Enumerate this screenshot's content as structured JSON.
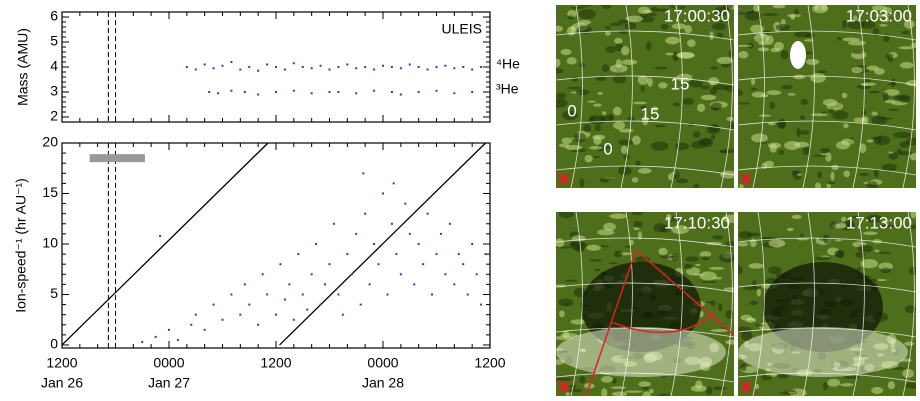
{
  "chart_data": [
    {
      "type": "scatter",
      "ylabel": "Mass (AMU)",
      "annotation": "ULEIS",
      "xlim": [
        0,
        48
      ],
      "xticks": [
        0,
        12,
        24,
        36,
        48
      ],
      "ylim": [
        1.8,
        6.2
      ],
      "yticks": [
        2,
        3,
        4,
        5,
        6
      ],
      "dashed_x": [
        5.2,
        6.0
      ],
      "series": [
        {
          "name": "⁴He",
          "color": "#4a2bd0",
          "x": [
            14,
            15,
            16,
            17,
            18,
            19,
            20,
            21,
            22,
            23,
            24,
            25,
            26,
            27,
            28,
            29,
            30,
            31,
            32,
            33,
            34,
            35,
            36,
            37,
            38,
            39,
            40,
            41,
            42,
            43,
            44,
            45,
            46,
            47
          ],
          "values": [
            4.0,
            3.9,
            4.1,
            3.95,
            4.05,
            4.2,
            3.9,
            4.0,
            3.85,
            4.1,
            4.0,
            3.9,
            4.15,
            4.0,
            3.95,
            4.05,
            3.9,
            4.0,
            4.1,
            3.95,
            4.0,
            3.9,
            4.05,
            4.0,
            3.95,
            4.1,
            4.0,
            3.9,
            4.0,
            4.05,
            3.95,
            4.0,
            3.9,
            4.0
          ]
        },
        {
          "name": "³He",
          "color": "#4a2bd0",
          "x": [
            16.5,
            17.5,
            19,
            20.5,
            22,
            24,
            26,
            28,
            30,
            31,
            33,
            35,
            37,
            38,
            40,
            42,
            44,
            46
          ],
          "values": [
            3.0,
            2.95,
            3.05,
            3.0,
            2.9,
            3.0,
            3.05,
            2.95,
            3.0,
            3.0,
            2.95,
            3.05,
            3.0,
            2.9,
            3.0,
            3.05,
            2.95,
            3.0
          ]
        }
      ]
    },
    {
      "type": "scatter",
      "ylabel": "Ion-speed⁻¹ (hr AU⁻¹)",
      "xlim": [
        0,
        48
      ],
      "xticks": [
        {
          "value": 0,
          "label": "1200"
        },
        {
          "value": 12,
          "label": "0000"
        },
        {
          "value": 24,
          "label": "1200"
        },
        {
          "value": 36,
          "label": "0000"
        },
        {
          "value": 48,
          "label": "1200"
        }
      ],
      "x_dates": [
        {
          "value": 0,
          "label": "Jan 26"
        },
        {
          "value": 12,
          "label": "Jan 27"
        },
        {
          "value": 36,
          "label": "Jan 28"
        }
      ],
      "ylim": [
        -0.3,
        20
      ],
      "yticks": [
        0,
        5,
        10,
        15,
        20
      ],
      "dashed_x": [
        5.2,
        6.0
      ],
      "bar": {
        "x": [
          3.1,
          9.3
        ],
        "y": 18.5,
        "color": "#999999"
      },
      "lines": [
        {
          "x": [
            0,
            23.1
          ],
          "y": [
            0,
            20
          ]
        },
        {
          "x": [
            24.4,
            47.5
          ],
          "y": [
            0,
            20
          ]
        }
      ],
      "series": [
        {
          "color": "#4a2bd0",
          "x": [
            14.5,
            15,
            16,
            17,
            18,
            19,
            20,
            20.5,
            21,
            22,
            22.5,
            23,
            24,
            24.5,
            25,
            25.5,
            26,
            26.5,
            27,
            27.5,
            28,
            28.5,
            29,
            29.5,
            30,
            30.5,
            31,
            31.5,
            32,
            32.5,
            33,
            33.5,
            34,
            34.5,
            35,
            35.5,
            36,
            36.5,
            37,
            37.5,
            38,
            38.5,
            39,
            39.5,
            40,
            40.5,
            41,
            41.5,
            42,
            42.5,
            43,
            43.5,
            44,
            44.5,
            45,
            45.5,
            46,
            46.5,
            47,
            47.5,
            11,
            9,
            33.8,
            37.2,
            10.5,
            12,
            13
          ],
          "values": [
            2,
            3,
            1.5,
            4,
            2.5,
            5,
            3,
            6,
            4,
            2,
            7,
            5,
            3,
            8,
            4.5,
            6,
            2.5,
            9,
            5,
            3.5,
            7,
            10,
            4,
            6,
            8,
            12,
            5,
            3,
            9,
            7,
            11,
            4,
            13,
            6,
            10,
            8,
            15,
            5,
            12,
            9,
            7,
            14,
            11,
            6,
            10,
            8,
            13,
            5,
            9,
            11,
            7,
            12,
            6,
            9,
            8,
            5,
            10,
            7,
            4,
            9,
            10.8,
            0.3,
            17,
            16,
            0.8,
            1.5,
            0.5
          ]
        }
      ]
    }
  ],
  "images": [
    {
      "time": "17:00:30",
      "labels": [
        "15",
        "0",
        "15",
        "0"
      ]
    },
    {
      "time": "17:03:00"
    },
    {
      "time": "17:10:30"
    },
    {
      "time": "17:13:00"
    }
  ]
}
